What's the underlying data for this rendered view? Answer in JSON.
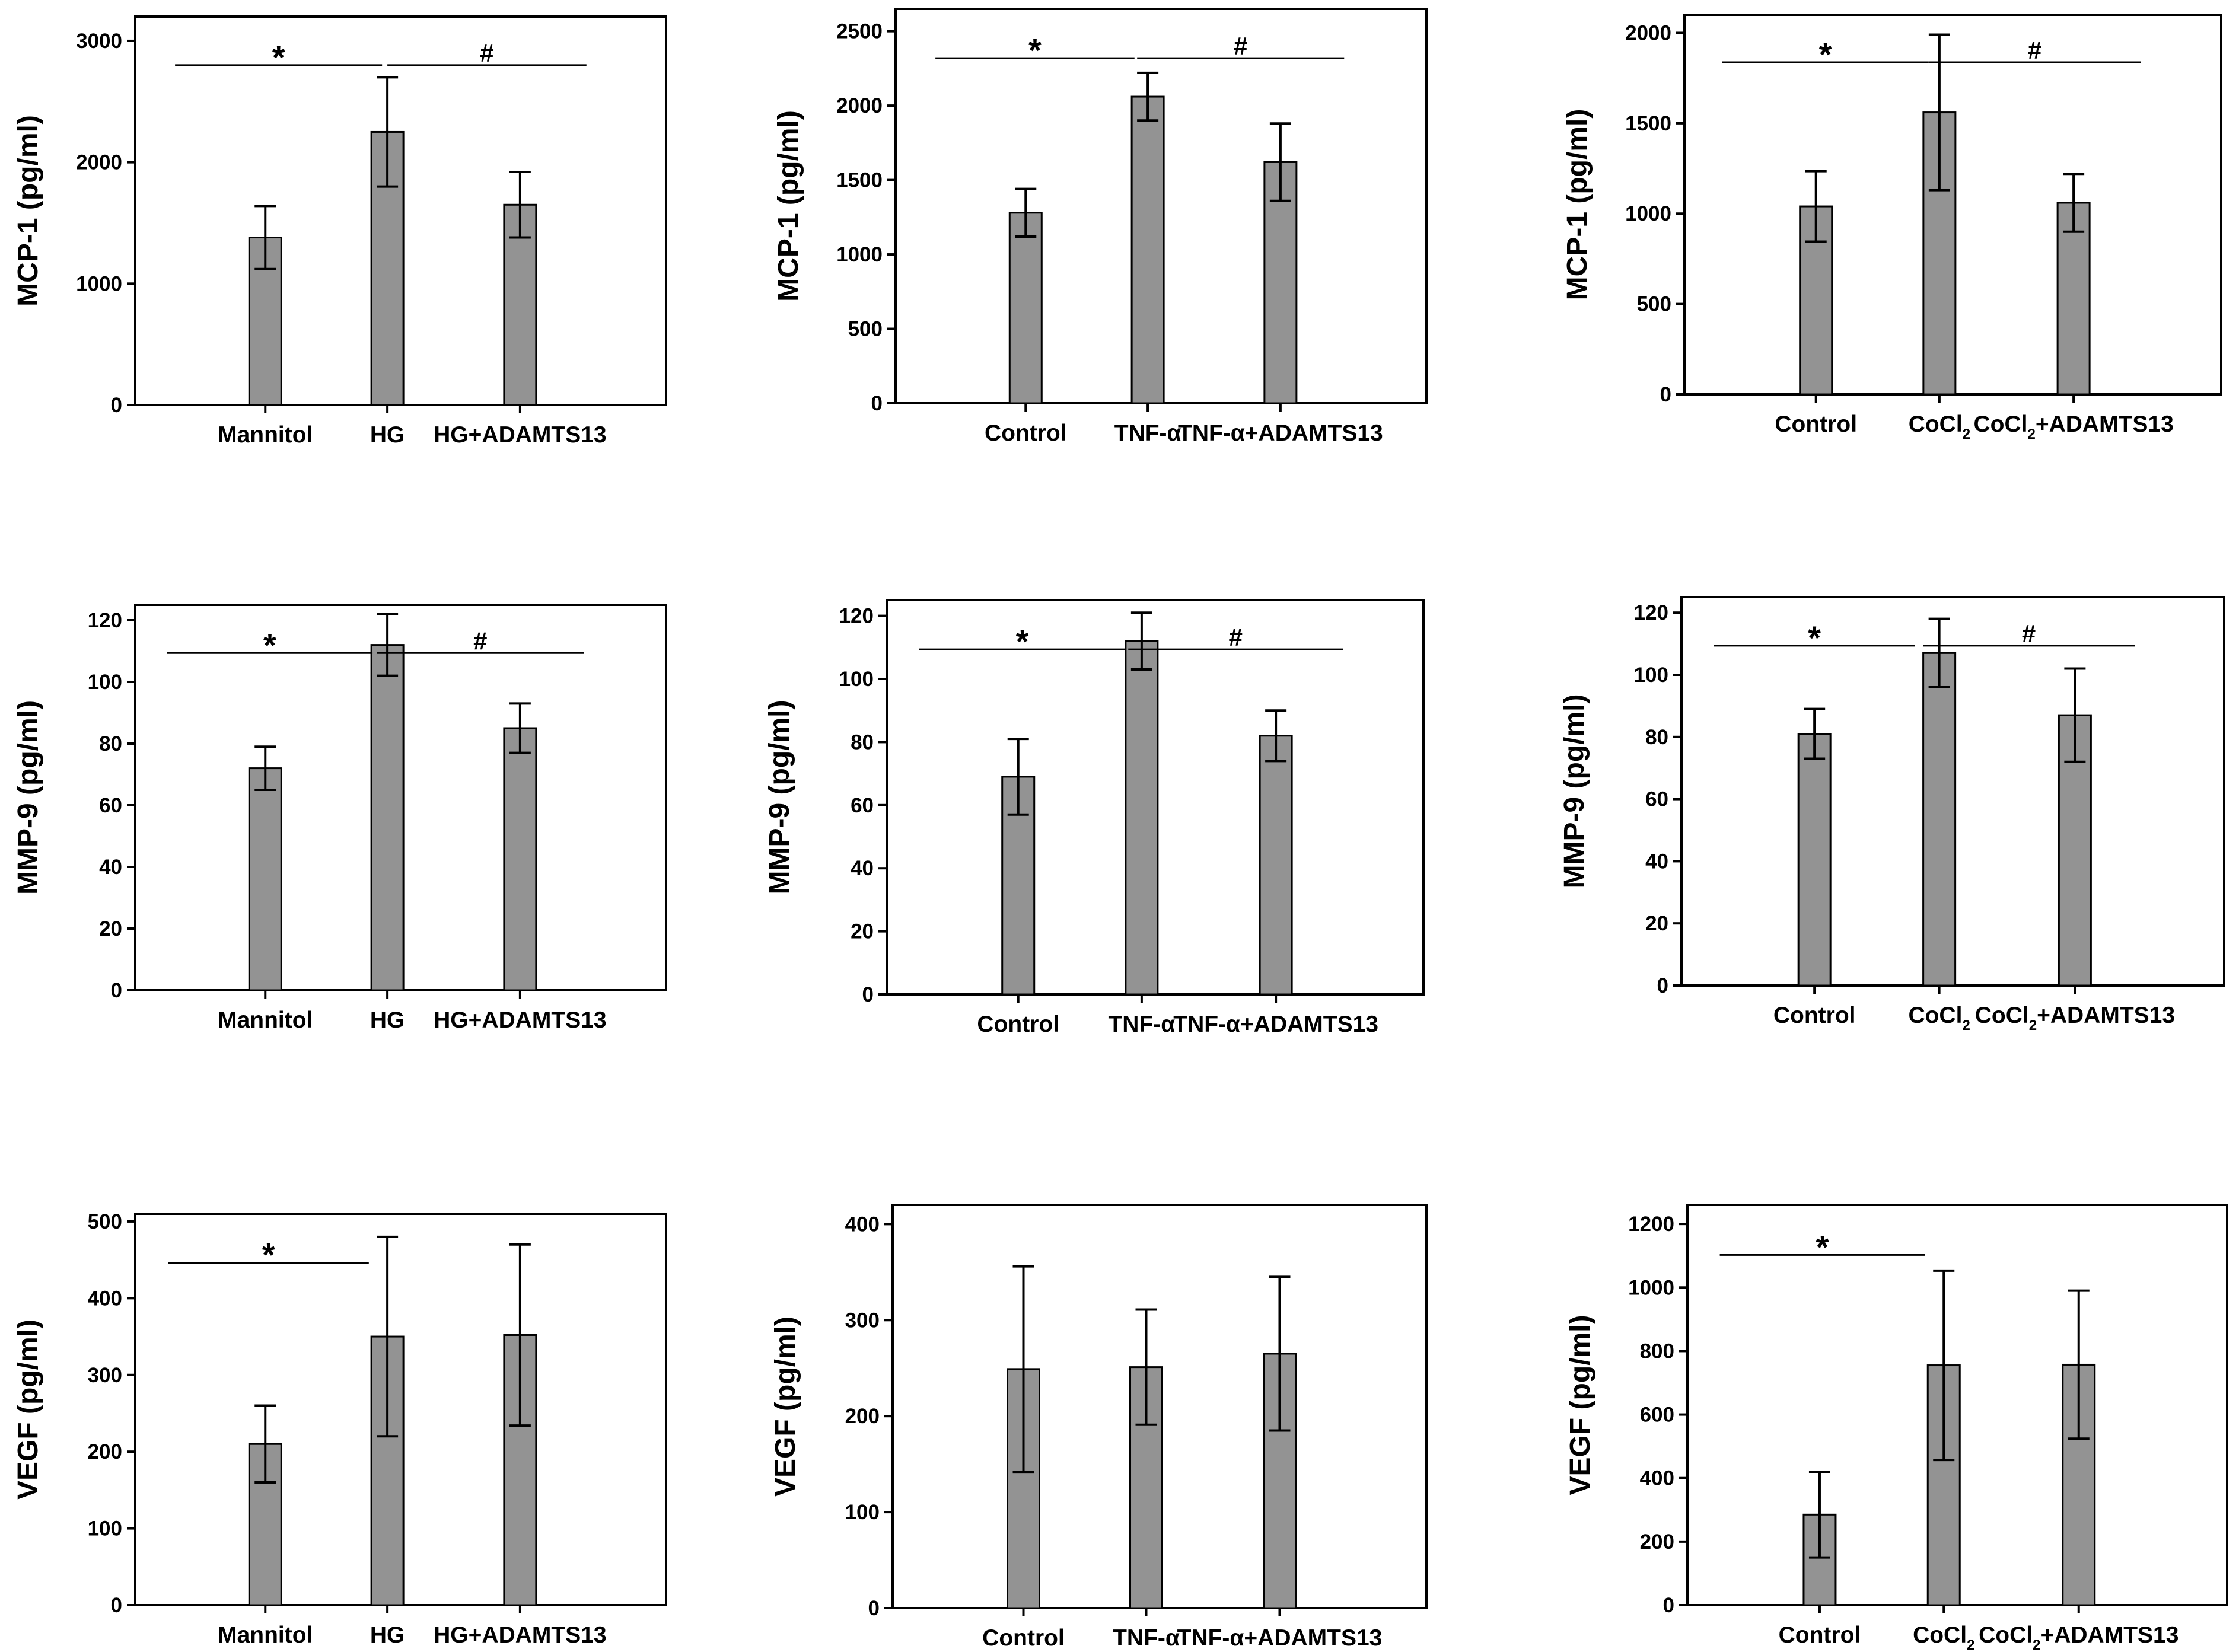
{
  "chart_data": [
    {
      "type": "bar",
      "row": 0,
      "col": 0,
      "ylabel": "MCP-1  (pg/ml)",
      "ylim": [
        0,
        3200
      ],
      "yticks": [
        0,
        1000,
        2000,
        3000
      ],
      "categories": [
        {
          "main": "Mannitol"
        },
        {
          "main": "HG"
        },
        {
          "main": "HG+ADAMTS13"
        }
      ],
      "values": [
        1380,
        2250,
        1650
      ],
      "errors": [
        260,
        450,
        270
      ],
      "annotations": [
        {
          "symbol": "*",
          "between": [
            0,
            1
          ]
        },
        {
          "symbol": "#",
          "between": [
            1,
            2
          ]
        }
      ]
    },
    {
      "type": "bar",
      "row": 0,
      "col": 1,
      "ylabel": "MCP-1  (pg/ml)",
      "ylim": [
        0,
        2650
      ],
      "yticks": [
        0,
        500,
        1000,
        1500,
        2000,
        2500
      ],
      "categories": [
        {
          "main": "Control"
        },
        {
          "main": "TNF-α"
        },
        {
          "main": "TNF-α+ADAMTS13"
        }
      ],
      "values": [
        1280,
        2060,
        1620
      ],
      "errors": [
        160,
        160,
        260
      ],
      "annotations": [
        {
          "symbol": "*",
          "between": [
            0,
            1
          ]
        },
        {
          "symbol": "#",
          "between": [
            1,
            2
          ]
        }
      ]
    },
    {
      "type": "bar",
      "row": 0,
      "col": 2,
      "ylabel": "MCP-1  (pg/ml)",
      "ylim": [
        0,
        2100
      ],
      "yticks": [
        0,
        500,
        1000,
        1500,
        2000
      ],
      "categories": [
        {
          "main": "Control"
        },
        {
          "main": "CoCl",
          "sub": "2"
        },
        {
          "main": "CoCl",
          "sub": "2",
          "tail": "+ADAMTS13"
        }
      ],
      "values": [
        1040,
        1560,
        1060
      ],
      "errors": [
        195,
        430,
        160
      ],
      "annotations": [
        {
          "symbol": "*",
          "between": [
            0,
            1
          ]
        },
        {
          "symbol": "#",
          "between": [
            1,
            2
          ]
        }
      ]
    },
    {
      "type": "bar",
      "row": 1,
      "col": 0,
      "ylabel": "MMP-9  (pg/ml)",
      "ylim": [
        0,
        125
      ],
      "yticks": [
        0,
        20,
        40,
        60,
        80,
        100,
        120
      ],
      "categories": [
        {
          "main": "Mannitol"
        },
        {
          "main": "HG"
        },
        {
          "main": "HG+ADAMTS13"
        }
      ],
      "values": [
        72,
        112,
        85
      ],
      "errors": [
        7,
        10,
        8
      ],
      "annotations": [
        {
          "symbol": "*",
          "between": [
            0,
            1
          ]
        },
        {
          "symbol": "#",
          "between": [
            1,
            2
          ]
        }
      ]
    },
    {
      "type": "bar",
      "row": 1,
      "col": 1,
      "ylabel": "MMP-9  (pg/ml)",
      "ylim": [
        0,
        125
      ],
      "yticks": [
        0,
        20,
        40,
        60,
        80,
        100,
        120
      ],
      "categories": [
        {
          "main": "Control"
        },
        {
          "main": "TNF-α"
        },
        {
          "main": "TNF-α+ADAMTS13"
        }
      ],
      "values": [
        69,
        112,
        82
      ],
      "errors": [
        12,
        9,
        8
      ],
      "annotations": [
        {
          "symbol": "*",
          "between": [
            0,
            1
          ]
        },
        {
          "symbol": "#",
          "between": [
            1,
            2
          ]
        }
      ]
    },
    {
      "type": "bar",
      "row": 1,
      "col": 2,
      "ylabel": "MMP-9  (pg/ml)",
      "ylim": [
        0,
        125
      ],
      "yticks": [
        0,
        20,
        40,
        60,
        80,
        100,
        120
      ],
      "categories": [
        {
          "main": "Control"
        },
        {
          "main": "CoCl",
          "sub": "2"
        },
        {
          "main": "CoCl",
          "sub": "2",
          "tail": "+ADAMTS13"
        }
      ],
      "values": [
        81,
        107,
        87
      ],
      "errors": [
        8,
        11,
        15
      ],
      "annotations": [
        {
          "symbol": "*",
          "between": [
            0,
            1
          ]
        },
        {
          "symbol": "#",
          "between": [
            1,
            2
          ]
        }
      ]
    },
    {
      "type": "bar",
      "row": 2,
      "col": 0,
      "ylabel": "VEGF (pg/ml)",
      "ylim": [
        0,
        510
      ],
      "yticks": [
        0,
        100,
        200,
        300,
        400,
        500
      ],
      "categories": [
        {
          "main": "Mannitol"
        },
        {
          "main": "HG"
        },
        {
          "main": "HG+ADAMTS13"
        }
      ],
      "values": [
        210,
        350,
        352
      ],
      "errors": [
        50,
        130,
        118
      ],
      "annotations": [
        {
          "symbol": "*",
          "between": [
            0,
            1
          ]
        }
      ]
    },
    {
      "type": "bar",
      "row": 2,
      "col": 1,
      "ylabel": "VEGF (pg/ml)",
      "ylim": [
        0,
        420
      ],
      "yticks": [
        0,
        100,
        200,
        300,
        400
      ],
      "categories": [
        {
          "main": "Control"
        },
        {
          "main": "TNF-α"
        },
        {
          "main": "TNF-α+ADAMTS13"
        }
      ],
      "values": [
        249,
        251,
        265
      ],
      "errors": [
        107,
        60,
        80
      ],
      "annotations": []
    },
    {
      "type": "bar",
      "row": 2,
      "col": 2,
      "ylabel": "VEGF (pg/ml)",
      "ylim": [
        0,
        1260
      ],
      "yticks": [
        0,
        200,
        400,
        600,
        800,
        1000,
        1200
      ],
      "categories": [
        {
          "main": "Control"
        },
        {
          "main": "CoCl",
          "sub": "2"
        },
        {
          "main": "CoCl",
          "sub": "2",
          "tail": "+ADAMTS13"
        }
      ],
      "values": [
        285,
        755,
        757
      ],
      "errors": [
        135,
        298,
        233
      ],
      "annotations": [
        {
          "symbol": "*",
          "between": [
            0,
            1
          ]
        }
      ]
    }
  ]
}
